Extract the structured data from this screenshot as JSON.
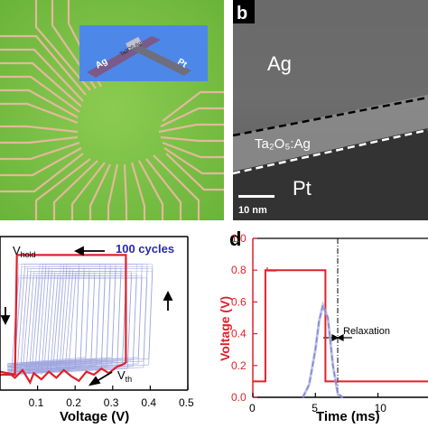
{
  "panel_a": {
    "inset": {
      "electrode_top": "Ag",
      "electrode_bottom": "Pt",
      "layer": "Ta2O5:Ag"
    }
  },
  "panel_b": {
    "label": "b",
    "ag": "Ag",
    "layer": "Ta₂O₅:Ag",
    "pt": "Pt",
    "scalebar": "10 nm"
  },
  "panel_c": {
    "xlabel": "Voltage (V)",
    "xticks": [
      "0.1",
      "0.2",
      "0.3",
      "0.4",
      "0.5"
    ],
    "cycles_label": "100 cycles",
    "vhold": "V",
    "vhold_sub": "hold",
    "vth": "V",
    "vth_sub": "th"
  },
  "panel_d": {
    "label": "d",
    "ylabel": "Voltage (V)",
    "xlabel": "Time (ms)",
    "yticks": [
      "1.0",
      "0.8",
      "0.6",
      "0.4",
      "0.2",
      "0.0"
    ],
    "xticks": [
      "0",
      "5",
      "10"
    ],
    "annotation": "Relaxation"
  },
  "colors": {
    "red": "#e0202a",
    "blue": "#2a2aa8",
    "green": "#7fc24a"
  },
  "chart_data": [
    {
      "type": "line",
      "panel": "c",
      "xlabel": "Voltage (V)",
      "xlim": [
        0.0,
        0.5
      ],
      "series": [
        {
          "x": [
            0.03,
            0.04,
            0.06,
            0.08,
            0.09,
            0.11,
            0.13,
            0.15,
            0.17,
            0.19,
            0.21,
            0.23,
            0.25,
            0.27,
            0.29,
            0.31,
            0.32,
            0.33,
            0.335
          ],
          "y": [
            0.1,
            0.08,
            0.13,
            0.05,
            0.11,
            0.07,
            0.12,
            0.08,
            0.13,
            0.09,
            0.06,
            0.12,
            0.1,
            0.14,
            0.11,
            0.15,
            0.16,
            0.17,
            0.18
          ]
        }
      ]
    },
    {
      "type": "line",
      "panel": "d",
      "ylabel": "Voltage (V)",
      "xlabel": "Time (ms)",
      "ylim": [
        0.0,
        1.0
      ],
      "series": [
        {
          "x": [
            0,
            1,
            1,
            5.8,
            5.8,
            7.2,
            7.2,
            14
          ],
          "y": [
            0.1,
            0.1,
            0.8,
            0.8,
            0.1,
            0.1,
            0.1,
            0.1
          ]
        },
        {
          "x": [
            4.0,
            4.5,
            5.0,
            5.3,
            5.6,
            6.0,
            6.4,
            6.8,
            7.2
          ],
          "y": [
            0.0,
            0.08,
            0.3,
            0.48,
            0.58,
            0.5,
            0.2,
            0.02,
            0.0
          ]
        }
      ]
    }
  ]
}
